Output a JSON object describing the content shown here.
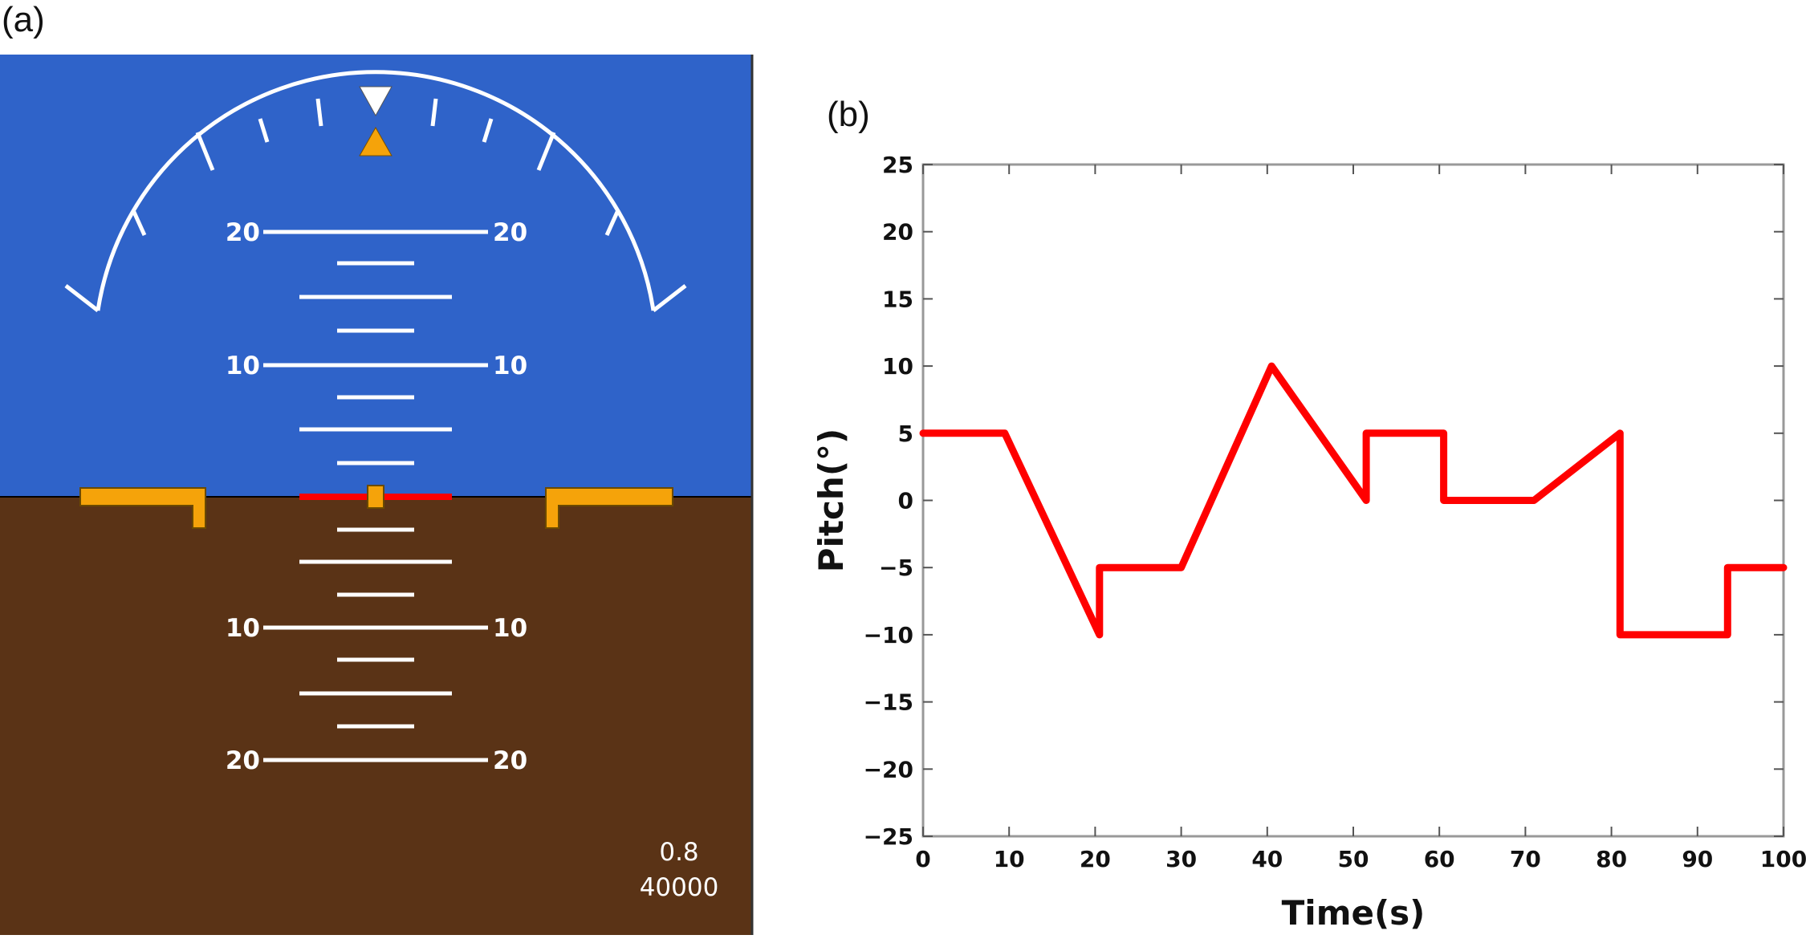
{
  "figure": {
    "panel_a_label": "(a)",
    "panel_b_label": "(b)"
  },
  "attitude_indicator": {
    "colors": {
      "sky": "#2f63c9",
      "ground": "#5a3316",
      "marks": "#ffffff",
      "aircraft_symbol": "#f5a30a",
      "horizon_marker": "#ff0000"
    },
    "pitch_ladder": {
      "upper_20_left": "20",
      "upper_20_right": "20",
      "upper_10_left": "10",
      "upper_10_right": "10",
      "lower_10_left": "10",
      "lower_10_right": "10",
      "lower_20_left": "20",
      "lower_20_right": "20"
    },
    "readouts": {
      "mach": "0.8",
      "altitude": "40000"
    }
  },
  "chart_data": {
    "type": "line",
    "title": "",
    "xlabel": "Time(s)",
    "ylabel": "Pitch(°)",
    "xlim": [
      0,
      100
    ],
    "ylim": [
      -25,
      25
    ],
    "x_ticks": [
      0,
      10,
      20,
      30,
      40,
      50,
      60,
      70,
      80,
      90,
      100
    ],
    "y_ticks": [
      25,
      20,
      15,
      10,
      5,
      0,
      -5,
      -10,
      -15,
      -20,
      -25
    ],
    "x_tick_labels": [
      "0",
      "10",
      "20",
      "30",
      "40",
      "50",
      "60",
      "70",
      "80",
      "90",
      "100"
    ],
    "y_tick_labels": [
      "25",
      "20",
      "15",
      "10",
      "5",
      "0",
      "−5",
      "−10",
      "−15",
      "−20",
      "−25"
    ],
    "grid": false,
    "line_color": "#ff0000",
    "series": [
      {
        "x": [
          0,
          9.5,
          20.5,
          20.5,
          30,
          40.5,
          51.5,
          51.5,
          60.5,
          60.5,
          71,
          81,
          81,
          93.5,
          93.5,
          100
        ],
        "y": [
          5,
          5,
          -10,
          -5,
          -5,
          10,
          0,
          5,
          5,
          0,
          0,
          5,
          -10,
          -10,
          -5,
          -5
        ]
      }
    ]
  }
}
